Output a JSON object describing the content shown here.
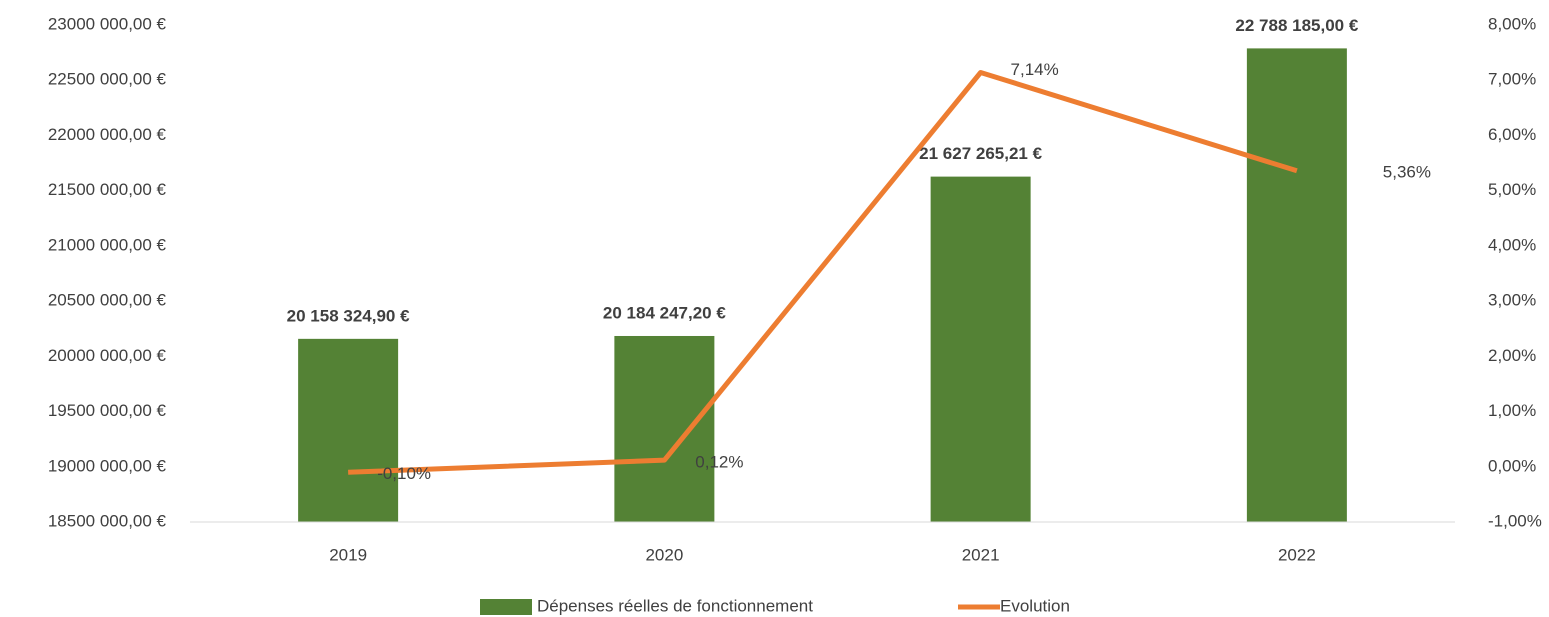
{
  "chart_data": {
    "type": "bar-line",
    "categories": [
      "2019",
      "2020",
      "2021",
      "2022"
    ],
    "series": [
      {
        "name": "Dépenses réelles de fonctionnement",
        "type": "bar",
        "color": "#548235",
        "values": [
          20158324.9,
          20184247.2,
          21627265.21,
          22788185.0
        ],
        "value_labels": [
          "20 158 324,90 €",
          "20 184 247,20 €",
          "21 627 265,21 €",
          "22 788 185,00 €"
        ]
      },
      {
        "name": "Evolution",
        "type": "line",
        "axis": "y2",
        "color": "#ed7d31",
        "values": [
          -0.1,
          0.12,
          7.14,
          5.36
        ],
        "value_labels": [
          "-0,10%",
          "0,12%",
          "7,14%",
          "5,36%"
        ]
      }
    ],
    "ylim": [
      18500000,
      23000000
    ],
    "yticks": [
      {
        "value": 18500000,
        "label": "18500 000,00 €"
      },
      {
        "value": 19000000,
        "label": "19000 000,00 €"
      },
      {
        "value": 19500000,
        "label": "19500 000,00 €"
      },
      {
        "value": 20000000,
        "label": "20000 000,00 €"
      },
      {
        "value": 20500000,
        "label": "20500 000,00 €"
      },
      {
        "value": 21000000,
        "label": "21000 000,00 €"
      },
      {
        "value": 21500000,
        "label": "21500 000,00 €"
      },
      {
        "value": 22000000,
        "label": "22000 000,00 €"
      },
      {
        "value": 22500000,
        "label": "22500 000,00 €"
      },
      {
        "value": 23000000,
        "label": "23000 000,00 €"
      }
    ],
    "y2lim": [
      -1,
      8
    ],
    "y2ticks": [
      {
        "value": -1,
        "label": "-1,00%"
      },
      {
        "value": 0,
        "label": "0,00%"
      },
      {
        "value": 1,
        "label": "1,00%"
      },
      {
        "value": 2,
        "label": "2,00%"
      },
      {
        "value": 3,
        "label": "3,00%"
      },
      {
        "value": 4,
        "label": "4,00%"
      },
      {
        "value": 5,
        "label": "5,00%"
      },
      {
        "value": 6,
        "label": "6,00%"
      },
      {
        "value": 7,
        "label": "7,00%"
      },
      {
        "value": 8,
        "label": "8,00%"
      }
    ],
    "grid": false,
    "legend": "bottom"
  }
}
